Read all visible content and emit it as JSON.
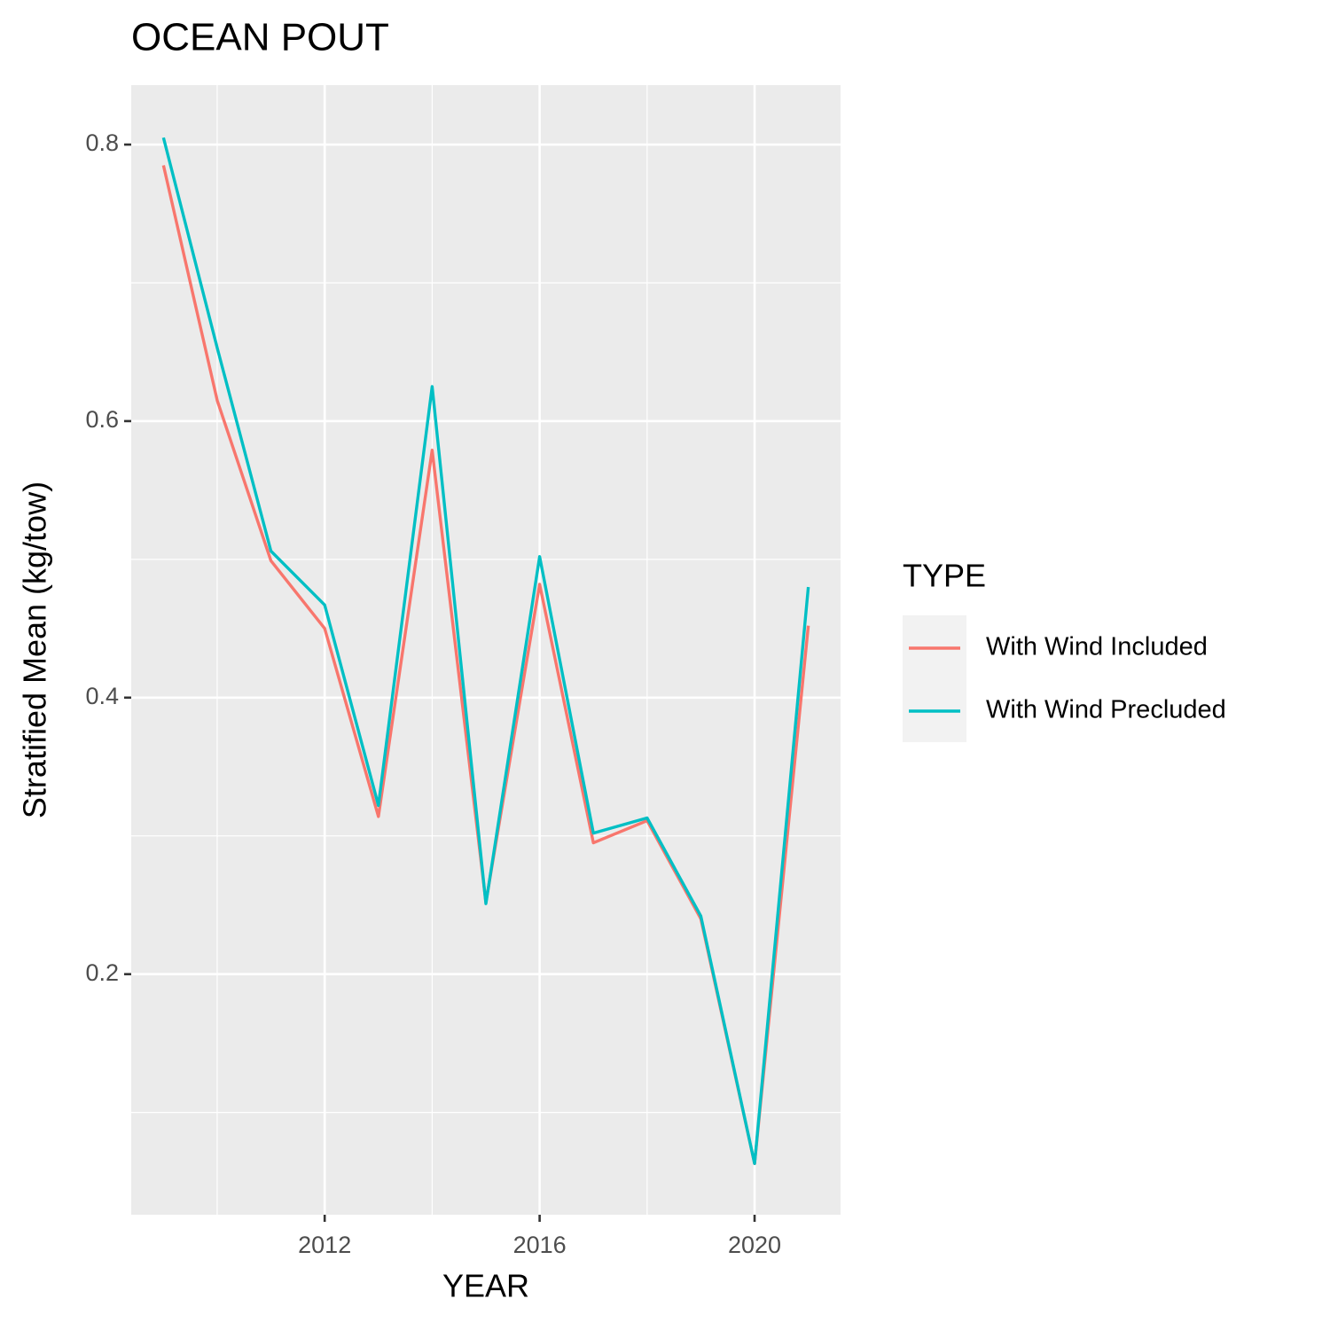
{
  "chart_data": {
    "type": "line",
    "title": "OCEAN POUT",
    "x_label": "YEAR",
    "y_label": "Stratified Mean (kg/tow)",
    "x": [
      2009,
      2010,
      2011,
      2012,
      2013,
      2014,
      2015,
      2016,
      2017,
      2018,
      2019,
      2020,
      2021
    ],
    "series": [
      {
        "name": "With Wind Included",
        "color": "#f8766d",
        "values": [
          0.785,
          0.615,
          0.499,
          0.45,
          0.314,
          0.579,
          0.252,
          0.482,
          0.295,
          0.311,
          0.24,
          0.063,
          0.452
        ]
      },
      {
        "name": "With Wind Precluded",
        "color": "#00bfc4",
        "values": [
          0.805,
          0.653,
          0.506,
          0.467,
          0.322,
          0.625,
          0.251,
          0.502,
          0.302,
          0.313,
          0.242,
          0.063,
          0.48
        ]
      }
    ],
    "xlim": [
      2008.4,
      2021.6
    ],
    "xticks": [
      2012,
      2016,
      2020
    ],
    "x_minor_grid": [
      2010,
      2014,
      2018
    ],
    "ylim": [
      0.026,
      0.843
    ],
    "yticks": [
      0.2,
      0.4,
      0.6,
      0.8
    ],
    "y_minor_grid": [
      0.1,
      0.3,
      0.5,
      0.7
    ],
    "grid": true,
    "legend_title": "TYPE",
    "legend_position": "right"
  }
}
